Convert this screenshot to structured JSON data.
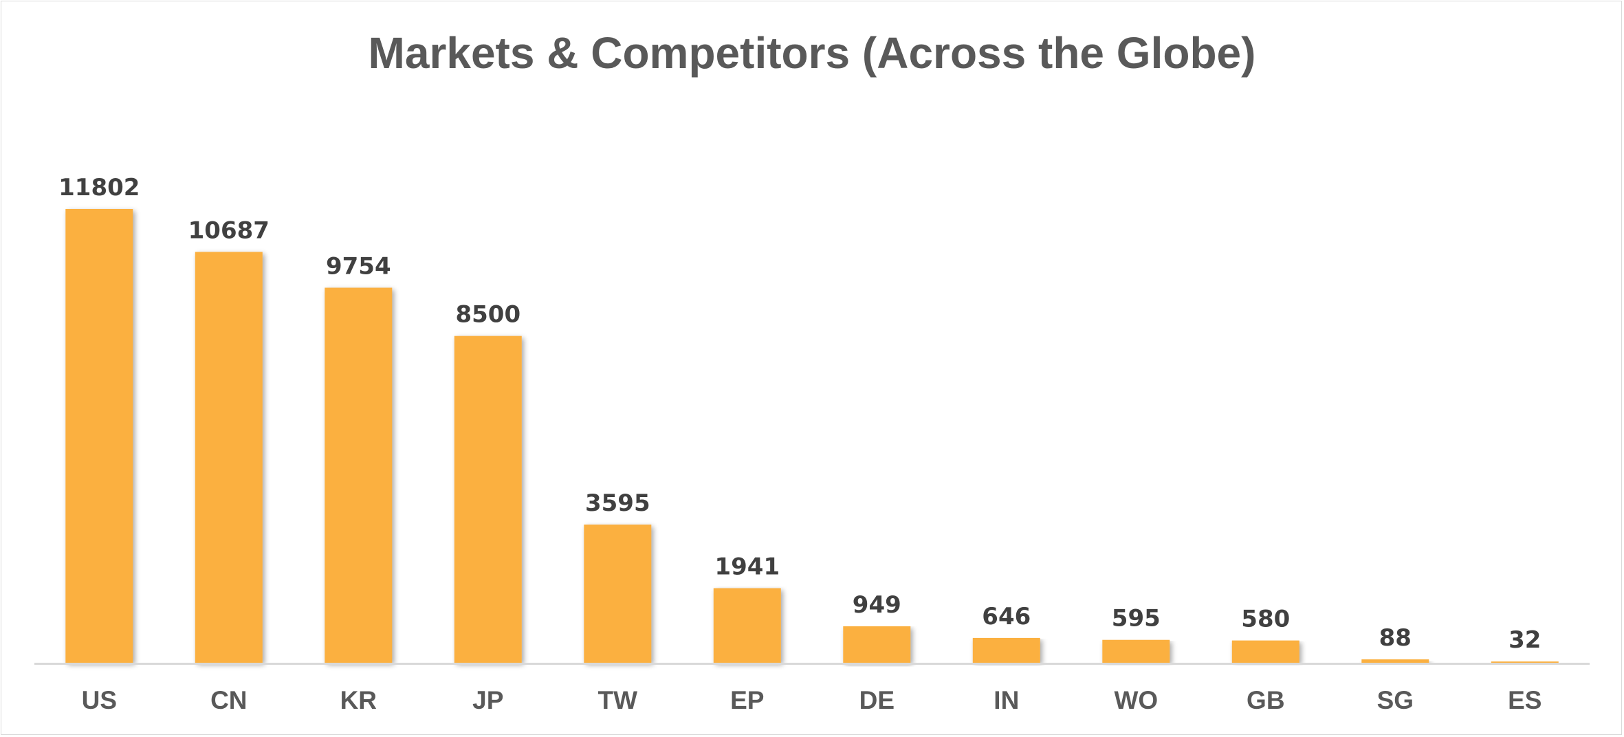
{
  "chart_data": {
    "type": "bar",
    "title": "Markets & Competitors (Across the Globe)",
    "categories": [
      "US",
      "CN",
      "KR",
      "JP",
      "TW",
      "EP",
      "DE",
      "IN",
      "WO",
      "GB",
      "SG",
      "ES"
    ],
    "values": [
      11802,
      10687,
      9754,
      8500,
      3595,
      1941,
      949,
      646,
      595,
      580,
      88,
      32
    ],
    "xlabel": "",
    "ylabel": "",
    "ylim": [
      0,
      11802
    ],
    "grid": false,
    "legend": "none",
    "data_labels": true,
    "bar_color": "#FBB040",
    "axis_color": "#d9d9d9",
    "title_color": "#595959",
    "label_color": "#404040",
    "category_color": "#595959"
  }
}
